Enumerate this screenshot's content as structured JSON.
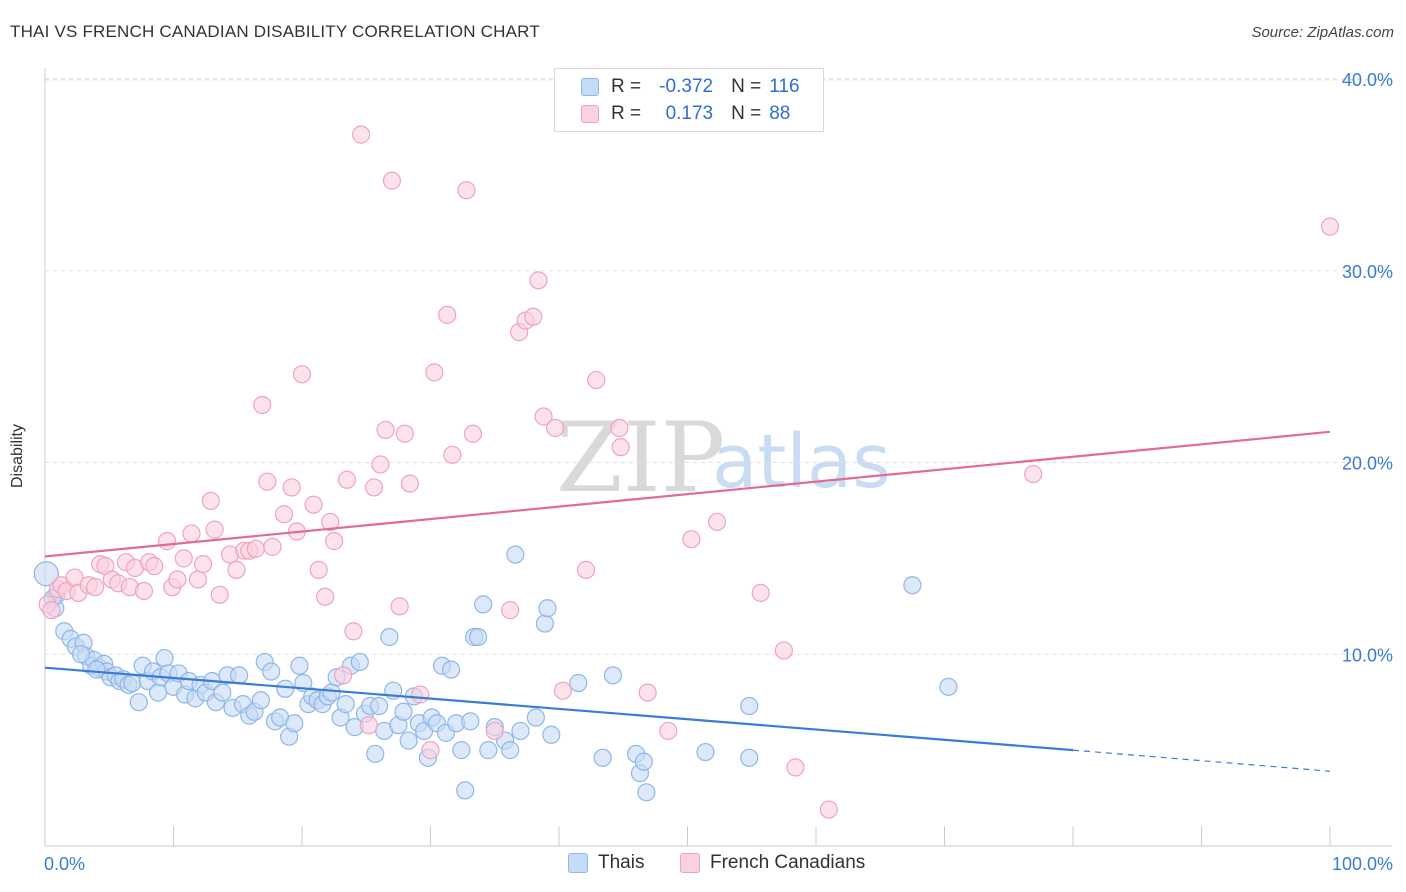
{
  "title": "THAI VS FRENCH CANADIAN DISABILITY CORRELATION CHART",
  "source": "Source: ZipAtlas.com",
  "watermark": {
    "zip": "ZIP",
    "atlas": "atlas"
  },
  "legend": {
    "rows": [
      {
        "r_label": "R =",
        "r_value": "-0.372",
        "n_label": "N =",
        "n_value": "116",
        "color": "#8db7ea",
        "fill": "#c6dbf5"
      },
      {
        "r_label": "R =",
        "r_value": "0.173",
        "n_label": "N =",
        "n_value": "88",
        "color": "#f0a3bd",
        "fill": "#fad1de"
      }
    ]
  },
  "bottom_legend": [
    {
      "label": "Thais",
      "color": "#8db7ea",
      "fill": "#c6dbf5"
    },
    {
      "label": "French Canadians",
      "color": "#f0a3bd",
      "fill": "#fad1de"
    }
  ],
  "chart_data": {
    "type": "scatter",
    "title": "THAI VS FRENCH CANADIAN DISABILITY CORRELATION CHART",
    "xlabel": "",
    "ylabel": "Disability",
    "xlim": [
      0,
      100
    ],
    "ylim": [
      0,
      40
    ],
    "x_tick_labels": [
      "0.0%",
      "100.0%"
    ],
    "y_ticks": [
      10,
      20,
      30,
      40
    ],
    "y_tick_labels": [
      "10.0%",
      "20.0%",
      "30.0%",
      "40.0%"
    ],
    "grid": true,
    "series": [
      {
        "name": "Thais",
        "color": "#3a7bd5",
        "fill": "#c6dbf5",
        "stroke": "#8db7ea",
        "trend": {
          "x0": 0,
          "y0": 9.3,
          "x1": 80,
          "y1": 5.0,
          "dash_to_x": 100,
          "dash_to_y": 3.9
        },
        "points": [
          [
            0.1,
            14.2
          ],
          [
            0.8,
            12.4
          ],
          [
            0.9,
            13.1
          ],
          [
            1.5,
            11.2
          ],
          [
            2.0,
            10.8
          ],
          [
            2.4,
            10.4
          ],
          [
            3.0,
            10.6
          ],
          [
            3.2,
            9.9
          ],
          [
            3.6,
            9.4
          ],
          [
            3.8,
            9.7
          ],
          [
            4.2,
            9.3
          ],
          [
            4.6,
            9.5
          ],
          [
            4.8,
            9.1
          ],
          [
            5.1,
            8.8
          ],
          [
            5.5,
            8.9
          ],
          [
            5.8,
            8.6
          ],
          [
            6.1,
            8.7
          ],
          [
            6.5,
            8.4
          ],
          [
            6.8,
            8.5
          ],
          [
            7.3,
            7.5
          ],
          [
            7.6,
            9.4
          ],
          [
            8.0,
            8.6
          ],
          [
            8.4,
            9.1
          ],
          [
            8.8,
            8.0
          ],
          [
            9.0,
            8.8
          ],
          [
            9.3,
            9.8
          ],
          [
            9.6,
            9.0
          ],
          [
            10.0,
            8.3
          ],
          [
            10.4,
            9.0
          ],
          [
            10.9,
            7.9
          ],
          [
            11.2,
            8.6
          ],
          [
            11.7,
            7.7
          ],
          [
            12.1,
            8.4
          ],
          [
            12.5,
            8.0
          ],
          [
            13.0,
            8.6
          ],
          [
            13.3,
            7.5
          ],
          [
            13.8,
            8.0
          ],
          [
            14.2,
            8.9
          ],
          [
            14.6,
            7.2
          ],
          [
            15.1,
            8.9
          ],
          [
            15.4,
            7.4
          ],
          [
            15.9,
            6.8
          ],
          [
            16.3,
            7.0
          ],
          [
            16.8,
            7.6
          ],
          [
            17.1,
            9.6
          ],
          [
            17.6,
            9.1
          ],
          [
            17.9,
            6.5
          ],
          [
            18.3,
            6.7
          ],
          [
            18.7,
            8.2
          ],
          [
            19.0,
            5.7
          ],
          [
            19.4,
            6.4
          ],
          [
            19.8,
            9.4
          ],
          [
            20.1,
            8.5
          ],
          [
            20.5,
            7.4
          ],
          [
            20.8,
            7.8
          ],
          [
            21.2,
            7.6
          ],
          [
            21.6,
            7.4
          ],
          [
            22.0,
            7.8
          ],
          [
            22.3,
            8.0
          ],
          [
            22.7,
            8.8
          ],
          [
            23.0,
            6.7
          ],
          [
            23.4,
            7.4
          ],
          [
            23.8,
            9.4
          ],
          [
            24.1,
            6.2
          ],
          [
            24.5,
            9.6
          ],
          [
            24.9,
            6.9
          ],
          [
            25.3,
            7.3
          ],
          [
            25.7,
            4.8
          ],
          [
            26.0,
            7.3
          ],
          [
            26.4,
            6.0
          ],
          [
            26.8,
            10.9
          ],
          [
            27.1,
            8.1
          ],
          [
            27.5,
            6.3
          ],
          [
            27.9,
            7.0
          ],
          [
            28.3,
            5.5
          ],
          [
            28.7,
            7.8
          ],
          [
            29.1,
            6.4
          ],
          [
            29.5,
            6.0
          ],
          [
            29.8,
            4.6
          ],
          [
            30.1,
            6.7
          ],
          [
            30.5,
            6.4
          ],
          [
            30.9,
            9.4
          ],
          [
            31.2,
            5.9
          ],
          [
            31.6,
            9.2
          ],
          [
            32.0,
            6.4
          ],
          [
            32.4,
            5.0
          ],
          [
            32.7,
            2.9
          ],
          [
            33.1,
            6.5
          ],
          [
            33.4,
            10.9
          ],
          [
            33.7,
            10.9
          ],
          [
            34.1,
            12.6
          ],
          [
            34.5,
            5.0
          ],
          [
            35.0,
            6.2
          ],
          [
            35.8,
            5.5
          ],
          [
            36.2,
            5.0
          ],
          [
            36.6,
            15.2
          ],
          [
            37.0,
            6.0
          ],
          [
            38.2,
            6.7
          ],
          [
            38.9,
            11.6
          ],
          [
            39.1,
            12.4
          ],
          [
            39.4,
            5.8
          ],
          [
            41.5,
            8.5
          ],
          [
            43.4,
            4.6
          ],
          [
            44.2,
            8.9
          ],
          [
            46.0,
            4.8
          ],
          [
            46.3,
            3.8
          ],
          [
            46.6,
            4.4
          ],
          [
            46.8,
            2.8
          ],
          [
            51.4,
            4.9
          ],
          [
            54.8,
            4.6
          ],
          [
            54.8,
            7.3
          ],
          [
            67.5,
            13.6
          ],
          [
            70.3,
            8.3
          ],
          [
            0.6,
            12.9
          ],
          [
            2.8,
            10.0
          ],
          [
            4.0,
            9.2
          ]
        ]
      },
      {
        "name": "French Canadians",
        "color": "#e26b96",
        "fill": "#fad1de",
        "stroke": "#f0a3bd",
        "trend": {
          "x0": 0,
          "y0": 15.1,
          "x1": 100,
          "y1": 21.6
        },
        "points": [
          [
            0.2,
            12.6
          ],
          [
            0.5,
            12.3
          ],
          [
            1.0,
            13.4
          ],
          [
            1.3,
            13.6
          ],
          [
            1.7,
            13.3
          ],
          [
            2.3,
            14.0
          ],
          [
            2.6,
            13.2
          ],
          [
            3.4,
            13.6
          ],
          [
            3.9,
            13.5
          ],
          [
            4.3,
            14.7
          ],
          [
            4.7,
            14.6
          ],
          [
            5.2,
            13.9
          ],
          [
            5.7,
            13.7
          ],
          [
            6.3,
            14.8
          ],
          [
            6.6,
            13.5
          ],
          [
            7.0,
            14.5
          ],
          [
            7.7,
            13.3
          ],
          [
            8.1,
            14.8
          ],
          [
            8.5,
            14.6
          ],
          [
            9.5,
            15.9
          ],
          [
            9.9,
            13.5
          ],
          [
            10.3,
            13.9
          ],
          [
            10.8,
            15.0
          ],
          [
            11.4,
            16.3
          ],
          [
            11.9,
            13.9
          ],
          [
            12.3,
            14.7
          ],
          [
            12.9,
            18.0
          ],
          [
            13.2,
            16.5
          ],
          [
            13.6,
            13.1
          ],
          [
            14.4,
            15.2
          ],
          [
            14.9,
            14.4
          ],
          [
            15.5,
            15.4
          ],
          [
            15.9,
            15.4
          ],
          [
            16.4,
            15.5
          ],
          [
            16.9,
            23.0
          ],
          [
            17.3,
            19.0
          ],
          [
            17.7,
            15.6
          ],
          [
            18.6,
            17.3
          ],
          [
            19.2,
            18.7
          ],
          [
            19.6,
            16.4
          ],
          [
            20.0,
            24.6
          ],
          [
            20.9,
            17.8
          ],
          [
            21.3,
            14.4
          ],
          [
            21.8,
            13.0
          ],
          [
            22.2,
            16.9
          ],
          [
            22.5,
            15.9
          ],
          [
            23.2,
            8.9
          ],
          [
            23.5,
            19.1
          ],
          [
            24.0,
            11.2
          ],
          [
            24.6,
            37.1
          ],
          [
            25.2,
            6.3
          ],
          [
            25.6,
            18.7
          ],
          [
            26.1,
            19.9
          ],
          [
            26.5,
            21.7
          ],
          [
            27.0,
            34.7
          ],
          [
            27.6,
            12.5
          ],
          [
            28.0,
            21.5
          ],
          [
            28.4,
            18.9
          ],
          [
            29.2,
            7.9
          ],
          [
            30.0,
            5.0
          ],
          [
            30.3,
            24.7
          ],
          [
            31.3,
            27.7
          ],
          [
            31.7,
            20.4
          ],
          [
            32.8,
            34.2
          ],
          [
            33.3,
            21.5
          ],
          [
            35.0,
            6.0
          ],
          [
            36.2,
            12.3
          ],
          [
            36.9,
            26.8
          ],
          [
            37.4,
            27.4
          ],
          [
            38.0,
            27.6
          ],
          [
            38.4,
            29.5
          ],
          [
            38.8,
            22.4
          ],
          [
            39.7,
            21.8
          ],
          [
            40.3,
            8.1
          ],
          [
            42.1,
            14.4
          ],
          [
            42.9,
            24.3
          ],
          [
            44.7,
            21.8
          ],
          [
            46.9,
            8.0
          ],
          [
            48.5,
            6.0
          ],
          [
            50.3,
            16.0
          ],
          [
            52.3,
            16.9
          ],
          [
            55.7,
            13.2
          ],
          [
            57.5,
            10.2
          ],
          [
            58.4,
            4.1
          ],
          [
            61.0,
            1.9
          ],
          [
            76.9,
            19.4
          ],
          [
            100.0,
            32.3
          ],
          [
            44.8,
            20.8
          ]
        ]
      }
    ]
  }
}
